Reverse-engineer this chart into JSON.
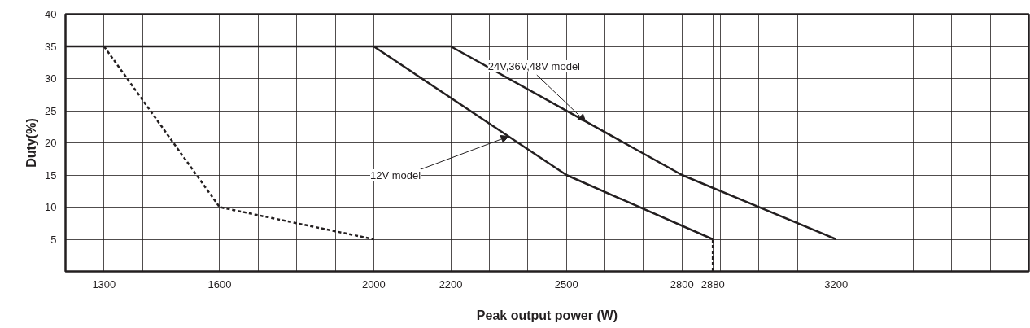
{
  "chart_data": {
    "type": "line",
    "xlabel": "Peak output power (W)",
    "ylabel": "Duty(%)",
    "series": [
      {
        "color": "#231f20",
        "line_style": "solid",
        "x": [
          1200,
          2200,
          2800,
          3200
        ],
        "values": [
          35,
          35,
          15,
          5
        ]
      },
      {
        "color": "#231f20",
        "line_style": "solid",
        "x": [
          2000,
          2500,
          2880
        ],
        "values": [
          35,
          15,
          5
        ]
      },
      {
        "color": "#231f20",
        "line_style": "dashed",
        "x": [
          2880,
          2880
        ],
        "values": [
          5,
          0
        ]
      },
      {
        "color": "#231f20",
        "line_style": "dashed",
        "x": [
          1300,
          1600,
          2000
        ],
        "values": [
          35,
          10,
          5
        ]
      }
    ],
    "xlim": [
      1200,
      3700
    ],
    "ylim": [
      0,
      40
    ],
    "xticks": [
      {
        "value": 1300,
        "label": "1300"
      },
      {
        "value": 1400,
        "label": null
      },
      {
        "value": 1500,
        "label": null
      },
      {
        "value": 1600,
        "label": "1600"
      },
      {
        "value": 1700,
        "label": null
      },
      {
        "value": 1800,
        "label": null
      },
      {
        "value": 1900,
        "label": null
      },
      {
        "value": 2000,
        "label": "2000"
      },
      {
        "value": 2100,
        "label": null
      },
      {
        "value": 2200,
        "label": "2200"
      },
      {
        "value": 2300,
        "label": null
      },
      {
        "value": 2400,
        "label": null
      },
      {
        "value": 2500,
        "label": "2500"
      },
      {
        "value": 2600,
        "label": null
      },
      {
        "value": 2700,
        "label": null
      },
      {
        "value": 2800,
        "label": "2800"
      },
      {
        "value": 2880,
        "label": "2880"
      },
      {
        "value": 2900,
        "label": null
      },
      {
        "value": 3000,
        "label": null
      },
      {
        "value": 3100,
        "label": null
      },
      {
        "value": 3200,
        "label": "3200"
      },
      {
        "value": 3300,
        "label": null
      },
      {
        "value": 3400,
        "label": null
      },
      {
        "value": 3500,
        "label": null
      },
      {
        "value": 3600,
        "label": null
      }
    ],
    "yticks": [
      5,
      10,
      15,
      20,
      25,
      30,
      35,
      40
    ],
    "grid": true,
    "marker": "none",
    "annotations": [
      {
        "text": "24V,36V,48V model",
        "x": 2550,
        "y": 23.3
      },
      {
        "text": "12V model",
        "x": 2350,
        "y": 21
      }
    ]
  }
}
